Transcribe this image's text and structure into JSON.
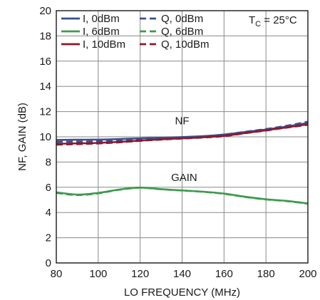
{
  "chart_data": {
    "type": "line",
    "xlabel": "LO FREQUENCY (MHz)",
    "ylabel": "NF, GAIN (dB)",
    "xlim": [
      80,
      200
    ],
    "ylim": [
      0,
      20
    ],
    "xticks": [
      80,
      100,
      120,
      140,
      160,
      180,
      200
    ],
    "yticks": [
      0,
      2,
      4,
      6,
      8,
      10,
      12,
      14,
      16,
      18,
      20
    ],
    "grid": true,
    "legend_position": "top-left",
    "temperature": {
      "main": "T",
      "sub": "C",
      "rest": " = 25°C"
    },
    "annotations": [
      {
        "text": "NF",
        "x": 140,
        "y": 11.0
      },
      {
        "text": "GAIN",
        "x": 141,
        "y": 6.5
      }
    ],
    "x": [
      80,
      90,
      100,
      110,
      120,
      130,
      140,
      150,
      160,
      170,
      180,
      190,
      200
    ],
    "series": [
      {
        "name": "I, 0dBm",
        "color": "#3b4f8f",
        "dashed": false,
        "group": "NF",
        "values": [
          9.75,
          9.77,
          9.78,
          9.82,
          9.88,
          9.93,
          9.98,
          10.05,
          10.18,
          10.38,
          10.58,
          10.82,
          11.1
        ]
      },
      {
        "name": "Q, 0dBm",
        "color": "#3b4f8f",
        "dashed": true,
        "group": "NF",
        "values": [
          9.6,
          9.62,
          9.65,
          9.72,
          9.82,
          9.9,
          9.96,
          10.03,
          10.18,
          10.4,
          10.62,
          10.88,
          11.2
        ]
      },
      {
        "name": "I, 6dBm",
        "color": "#3d9a4e",
        "dashed": false,
        "group": "GAIN",
        "values": [
          5.6,
          5.42,
          5.55,
          5.82,
          5.98,
          5.85,
          5.75,
          5.65,
          5.5,
          5.25,
          5.05,
          4.92,
          4.72
        ]
      },
      {
        "name": "Q, 6dBm",
        "color": "#3d9a4e",
        "dashed": true,
        "group": "GAIN",
        "values": [
          5.55,
          5.38,
          5.52,
          5.8,
          5.96,
          5.84,
          5.74,
          5.64,
          5.48,
          5.23,
          5.03,
          4.9,
          4.7
        ]
      },
      {
        "name": "I, 10dBm",
        "color": "#8b1a2e",
        "dashed": false,
        "group": "NF",
        "values": [
          9.45,
          9.48,
          9.52,
          9.6,
          9.7,
          9.8,
          9.88,
          9.96,
          10.08,
          10.3,
          10.52,
          10.75,
          11.0
        ]
      },
      {
        "name": "Q, 10dBm",
        "color": "#8b1a2e",
        "dashed": true,
        "group": "NF",
        "values": [
          9.38,
          9.42,
          9.47,
          9.56,
          9.68,
          9.78,
          9.86,
          9.94,
          10.05,
          10.28,
          10.5,
          10.73,
          10.95
        ]
      }
    ]
  }
}
